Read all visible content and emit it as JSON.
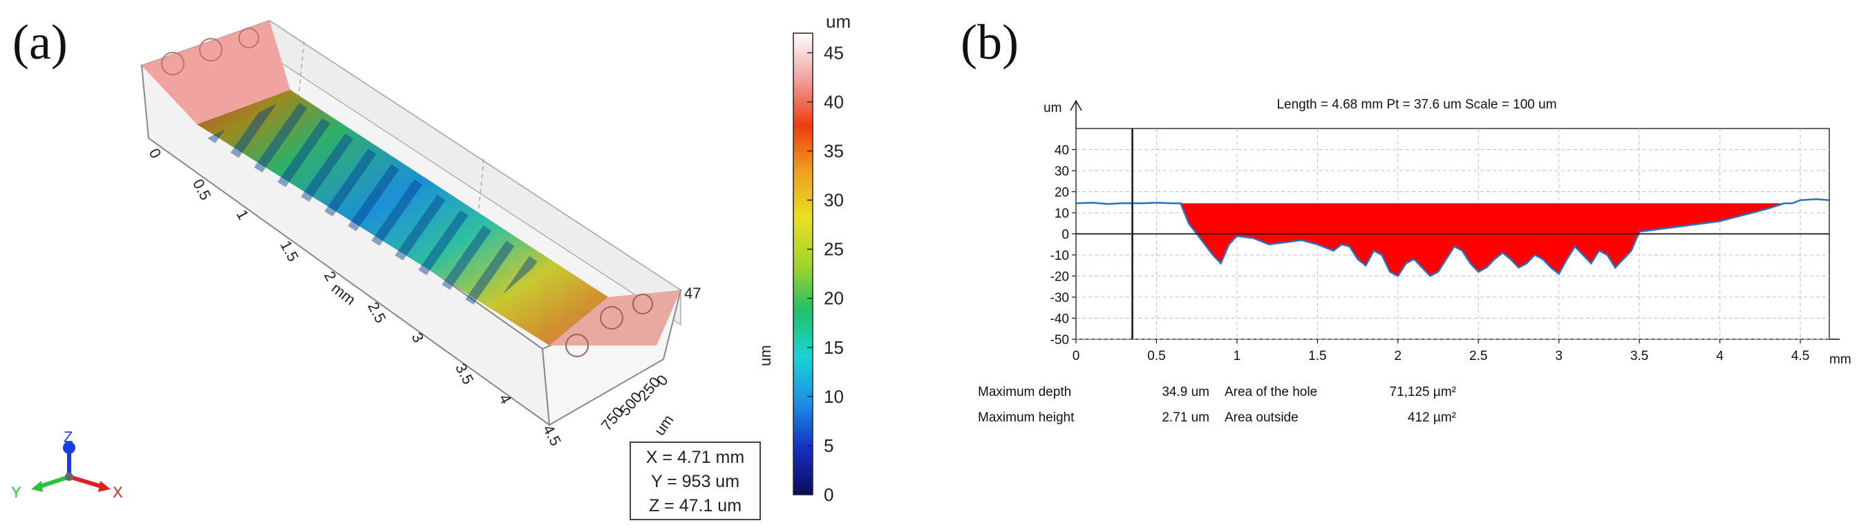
{
  "panel_a": {
    "label": "(a)",
    "colorbar": {
      "unit": "um",
      "axis_label": "um",
      "ticks": [
        45,
        40,
        35,
        30,
        25,
        20,
        15,
        10,
        5,
        0
      ],
      "range": [
        0,
        47
      ],
      "stops": [
        "#0b0b5a",
        "#1530c0",
        "#1e8fe6",
        "#1ad3d3",
        "#22c068",
        "#a6d42a",
        "#e8e020",
        "#f0a020",
        "#ee3c10",
        "#f0a0a0",
        "#ffffff"
      ]
    },
    "surface_axes": {
      "x_ticks": [
        "0",
        "0.5",
        "1",
        "1.5",
        "2",
        "2.5",
        "3",
        "3.5",
        "4",
        "4.5"
      ],
      "x_unit": "mm",
      "y_ticks": [
        "0",
        "250",
        "500",
        "750"
      ],
      "y_unit": "um",
      "z_max_label": "47"
    },
    "triad": {
      "z": "Z",
      "y": "Y",
      "x": "X"
    },
    "readout": {
      "x": "X = 4.71 mm",
      "y": "Y = 953 um",
      "z": "Z = 47.1 um"
    }
  },
  "panel_b": {
    "label": "(b)",
    "chart_data": {
      "type": "area",
      "title": "Length = 4.68 mm  Pt = 37.6 um  Scale = 100 um",
      "ylabel": "um",
      "xlabel": "mm",
      "xlim": [
        0,
        4.68
      ],
      "ylim": [
        -50,
        50
      ],
      "x_ticks": [
        0,
        0.5,
        1,
        1.5,
        2,
        2.5,
        3,
        3.5,
        4,
        4.5
      ],
      "y_ticks": [
        40,
        30,
        20,
        10,
        0,
        -10,
        -20,
        -30,
        -40,
        -50
      ],
      "grid": true,
      "reference_line_x": 0.35,
      "fill_level": 14.5,
      "x": [
        0,
        0.1,
        0.2,
        0.3,
        0.4,
        0.5,
        0.6,
        0.65,
        0.7,
        0.75,
        0.8,
        0.85,
        0.9,
        0.95,
        1.0,
        1.1,
        1.2,
        1.3,
        1.4,
        1.5,
        1.6,
        1.65,
        1.7,
        1.75,
        1.8,
        1.85,
        1.9,
        1.95,
        2.0,
        2.05,
        2.1,
        2.15,
        2.2,
        2.25,
        2.3,
        2.35,
        2.4,
        2.45,
        2.5,
        2.55,
        2.6,
        2.65,
        2.7,
        2.75,
        2.8,
        2.85,
        2.9,
        2.95,
        3.0,
        3.05,
        3.1,
        3.15,
        3.2,
        3.25,
        3.3,
        3.35,
        3.4,
        3.45,
        3.5,
        3.6,
        3.7,
        3.8,
        3.9,
        4.0,
        4.1,
        4.2,
        4.3,
        4.4,
        4.45,
        4.5,
        4.6,
        4.68
      ],
      "values": [
        14.5,
        14.8,
        14.2,
        14.6,
        14.5,
        14.8,
        14.5,
        14.5,
        5,
        0,
        -5,
        -10,
        -14,
        -5,
        -1,
        -2,
        -5,
        -4,
        -3,
        -5,
        -8,
        -5,
        -6,
        -12,
        -15,
        -8,
        -10,
        -18,
        -20,
        -14,
        -12,
        -16,
        -20,
        -18,
        -12,
        -6,
        -8,
        -14,
        -18,
        -16,
        -12,
        -9,
        -12,
        -16,
        -14,
        -10,
        -12,
        -16,
        -19,
        -12,
        -6,
        -10,
        -14,
        -8,
        -10,
        -16,
        -12,
        -8,
        1,
        2,
        3,
        4,
        5,
        6,
        8,
        10,
        12,
        14.5,
        14.5,
        16,
        16.5,
        16
      ],
      "annotations": [
        {
          "label": "Maximum depth",
          "value": "34.9 um"
        },
        {
          "label": "Area of the hole",
          "value": "71,125 µm²"
        },
        {
          "label": "Maximum height",
          "value": "2.71 um"
        },
        {
          "label": "Area outside",
          "value": "412 µm²"
        }
      ]
    }
  }
}
